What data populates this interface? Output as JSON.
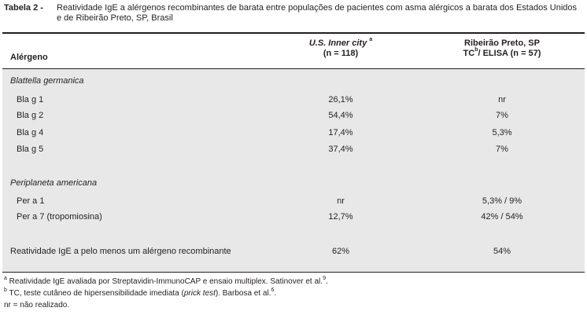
{
  "caption": {
    "label": "Tabela 2 -",
    "text": "Reatividade IgE a alérgenos recombinantes de barata entre populações de pacientes com asma alérgicos a barata dos Estados Unidos e de Ribeirão Preto, SP, Brasil"
  },
  "header": {
    "col1": "Alérgeno",
    "col2_name": "U.S. Inner city",
    "col2_sup": "a",
    "col2_n": "(n = 118)",
    "col3_name": "Ribeirão Preto, SP",
    "col3_method_a": "TC",
    "col3_sup": "b",
    "col3_method_b": "/ ELISA  (n = 57)"
  },
  "sections": [
    {
      "title": "Blattella germanica",
      "rows": [
        {
          "allergen": "Bla g 1",
          "us": "26,1%",
          "rp": "nr"
        },
        {
          "allergen": "Bla g 2",
          "us": "54,4%",
          "rp": "7%"
        },
        {
          "allergen": "Bla g 4",
          "us": "17,4%",
          "rp": "5,3%"
        },
        {
          "allergen": "Bla g 5",
          "us": "37,4%",
          "rp": "7%"
        }
      ]
    },
    {
      "title": "Periplaneta americana",
      "rows": [
        {
          "allergen": "Per a 1",
          "us": "nr",
          "rp": "5,3% / 9%"
        },
        {
          "allergen": "Per a 7 (tropomiosina)",
          "us": "12,7%",
          "rp": "42% / 54%"
        }
      ]
    }
  ],
  "summary": {
    "label": "Reatividade IgE a pelo menos um alérgeno recombinante",
    "us": "62%",
    "rp": "54%"
  },
  "footnotes": {
    "a_mark": "a",
    "a_text": " Reatividade IgE avaliada por Streptavidin-ImmunoCAP e ensaio multiplex. Satinover et al.",
    "a_ref": "9",
    "a_end": ".",
    "b_mark": "b",
    "b_text_1": " TC, teste cutâneo de hipersensibilidade imediata (",
    "b_italic": "prick test",
    "b_text_2": "). Barbosa et al.",
    "b_ref": "6",
    "b_end": ".",
    "nr": "nr = não realizado."
  }
}
